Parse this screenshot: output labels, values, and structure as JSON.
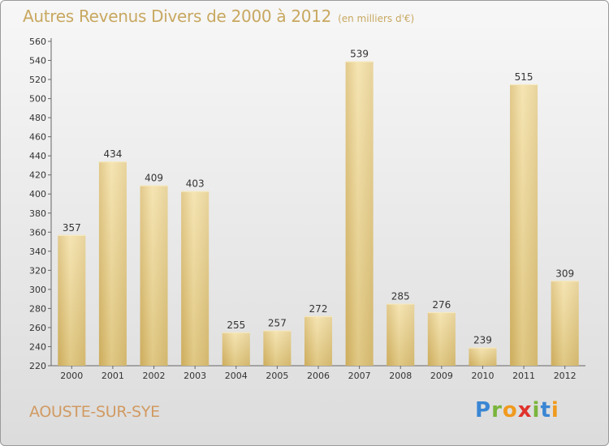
{
  "chart_data": {
    "type": "bar",
    "title": "Autres Revenus Divers de 2000 à 2012",
    "subtitle": "(en milliers d'€)",
    "categories": [
      "2000",
      "2001",
      "2002",
      "2003",
      "2004",
      "2005",
      "2006",
      "2007",
      "2008",
      "2009",
      "2010",
      "2011",
      "2012"
    ],
    "values": [
      357,
      434,
      409,
      403,
      255,
      257,
      272,
      539,
      285,
      276,
      239,
      515,
      309
    ],
    "ylim": [
      220,
      560
    ],
    "yticks": [
      220,
      240,
      260,
      280,
      300,
      320,
      340,
      360,
      380,
      400,
      420,
      440,
      460,
      480,
      500,
      520,
      540,
      560
    ],
    "grid": false,
    "bar_color": "#e8cd86"
  },
  "footer": {
    "commune": "AOUSTE-SUR-SYE",
    "logo": {
      "letters": [
        "P",
        "r",
        "o",
        "x",
        "i",
        "t",
        "i"
      ],
      "colors": [
        "#3a86d4",
        "#7ab53c",
        "#f09a1e",
        "#e0322c",
        "#7ab53c",
        "#3a86d4",
        "#f09a1e"
      ]
    }
  }
}
